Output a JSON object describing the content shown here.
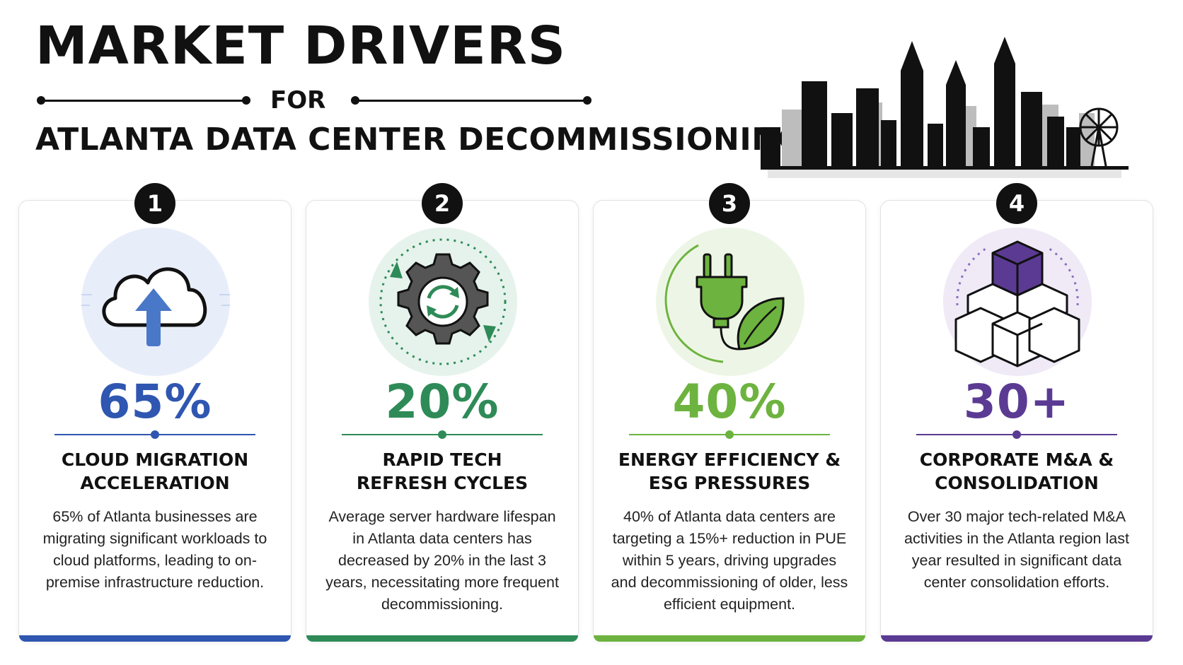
{
  "header": {
    "title": "MARKET DRIVERS",
    "for_label": "FOR",
    "subtitle": "ATLANTA DATA CENTER DECOMMISSIONING"
  },
  "skyline_icon": "atlanta-skyline-silhouette",
  "cards": [
    {
      "number": "1",
      "stat": "65%",
      "title_line1": "CLOUD MIGRATION",
      "title_line2": "ACCELERATION",
      "description": "65% of Atlanta businesses are migrating significant workloads to cloud platforms, leading to on-premise infrastructure reduction.",
      "icon": "cloud-upload-icon",
      "accent": "#2f56b0"
    },
    {
      "number": "2",
      "stat": "20%",
      "title_line1": "RAPID TECH",
      "title_line2": "REFRESH CYCLES",
      "description": "Average server hardware lifespan in Atlanta data centers has decreased by 20% in the last 3 years, necessitating more frequent decommissioning.",
      "icon": "gear-refresh-icon",
      "accent": "#2e8b57"
    },
    {
      "number": "3",
      "stat": "40%",
      "title_line1": "ENERGY EFFICIENCY &",
      "title_line2": "ESG PRESSURES",
      "description": "40% of Atlanta data centers are targeting a 15%+ reduction in PUE within 5 years, driving upgrades and decommissioning of older, less efficient equipment.",
      "icon": "plug-leaf-icon",
      "accent": "#6db33f"
    },
    {
      "number": "4",
      "stat": "30+",
      "title_line1": "CORPORATE M&A &",
      "title_line2": "CONSOLIDATION",
      "description": "Over 30 major tech-related M&A activities in the Atlanta region last year resulted in significant data center consolidation efforts.",
      "icon": "stacked-cubes-icon",
      "accent": "#5b3a93"
    }
  ]
}
